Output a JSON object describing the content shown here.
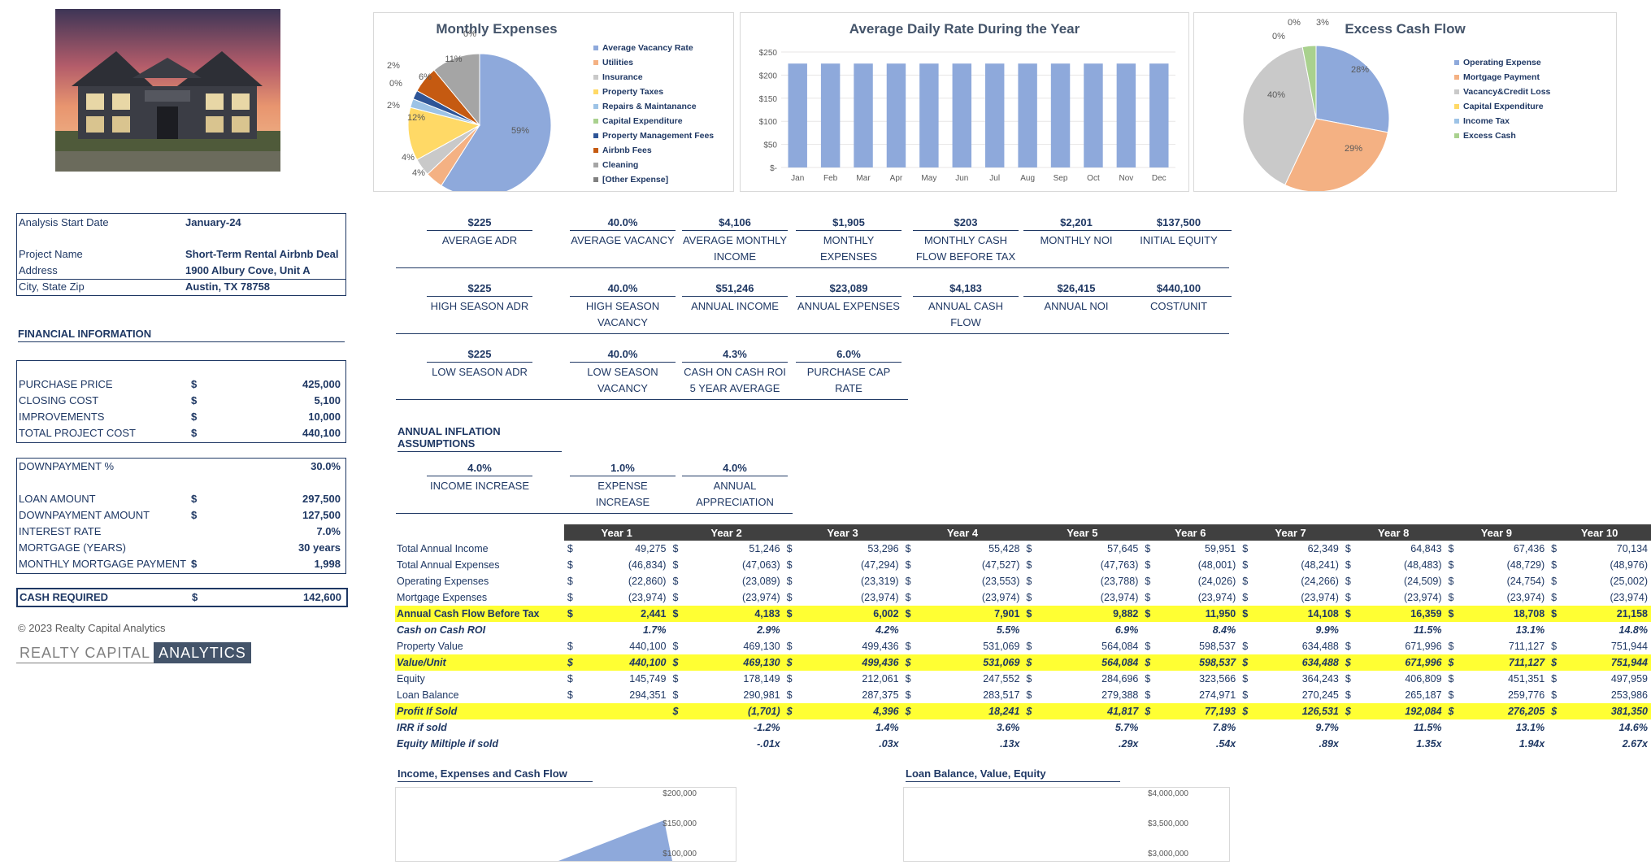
{
  "photo_alt": "house photo",
  "charts": {
    "monthly_expenses": {
      "title": "Monthly Expenses",
      "legend": [
        "Average Vacancy Rate",
        "Utilities",
        "Insurance",
        "Property Taxes",
        "Repairs & Maintanance",
        "Capital Expenditure",
        "Property Management Fees",
        "Airbnb Fees",
        "Cleaning",
        "[Other Expense]"
      ],
      "slice_labels": [
        "59%",
        "4%",
        "4%",
        "12%",
        "2%",
        "0%",
        "2%",
        "6%",
        "11%",
        "0%"
      ],
      "colors": [
        "#8ea9db",
        "#f4b183",
        "#c9c9c9",
        "#ffd966",
        "#9dc3e6",
        "#a9d18e",
        "#2e5597",
        "#c55a11",
        "#a5a5a5",
        "#808080"
      ]
    },
    "adr": {
      "title": "Average Daily Rate During the Year",
      "months": [
        "Jan",
        "Feb",
        "Mar",
        "Apr",
        "May",
        "Jun",
        "Jul",
        "Aug",
        "Sep",
        "Oct",
        "Nov",
        "Dec"
      ],
      "values": [
        225,
        225,
        225,
        225,
        225,
        225,
        225,
        225,
        225,
        225,
        225,
        225
      ],
      "y_ticks": [
        "$250",
        "$200",
        "$150",
        "$100",
        "$50",
        "$-"
      ],
      "ylim": [
        0,
        250
      ],
      "bar_color": "#8ea9db"
    },
    "excess_cash": {
      "title": "Excess Cash Flow",
      "legend": [
        "Operating Expense",
        "Mortgage Payment",
        "Vacancy&Credit Loss",
        "Capital Expenditure",
        "Income Tax",
        "Excess Cash"
      ],
      "slice_labels": [
        "28%",
        "29%",
        "40%",
        "0%",
        "0%",
        "3%"
      ],
      "colors": [
        "#8ea9db",
        "#f4b183",
        "#c9c9c9",
        "#ffd966",
        "#9dc3e6",
        "#a9d18e"
      ]
    },
    "income_chart": {
      "title": "Income, Expenses and Cash Flow",
      "y_ticks": [
        "$200,000",
        "$150,000",
        "$100,000"
      ]
    },
    "loan_chart": {
      "title": "Loan Balance, Value, Equity",
      "y_ticks": [
        "$4,000,000",
        "$3,500,000",
        "$3,000,000"
      ]
    }
  },
  "project": {
    "analysis_start_label": "Analysis Start Date",
    "analysis_start": "January-24",
    "project_name_label": "Project Name",
    "project_name": "Short-Term Rental Airbnb Deal",
    "address_label": "Address",
    "address": "1900 Albury Cove, Unit A",
    "city_label": "City, State Zip",
    "city": "Austin, TX 78758"
  },
  "financial": {
    "title": "FINANCIAL INFORMATION",
    "purchase_price_label": "PURCHASE PRICE",
    "purchase_price": "425,000",
    "closing_cost_label": "CLOSING COST",
    "closing_cost": "5,100",
    "improvements_label": "IMPROVEMENTS",
    "improvements": "10,000",
    "total_cost_label": "TOTAL PROJECT COST",
    "total_cost": "440,100",
    "downpayment_pct_label": "DOWNPAYMENT %",
    "downpayment_pct": "30.0%",
    "loan_amount_label": "LOAN AMOUNT",
    "loan_amount": "297,500",
    "downpayment_amount_label": "DOWNPAYMENT AMOUNT",
    "downpayment_amount": "127,500",
    "interest_rate_label": "INTEREST RATE",
    "interest_rate": "7.0%",
    "mortgage_years_label": "MORTGAGE (YEARS)",
    "mortgage_years": "30 years",
    "monthly_payment_label": "MONTHLY MORTGAGE PAYMENT",
    "monthly_payment": "1,998",
    "cash_required_label": "CASH REQUIRED",
    "cash_required": "142,600",
    "currency": "$"
  },
  "kpis_row1": [
    {
      "value": "$225",
      "label": "AVERAGE ADR"
    },
    {
      "value": "40.0%",
      "label": "AVERAGE VACANCY"
    },
    {
      "value": "$4,106",
      "label": "AVERAGE MONTHLY INCOME"
    },
    {
      "value": "$1,905",
      "label": "MONTHLY EXPENSES"
    },
    {
      "value": "$203",
      "label": "MONTHLY CASH FLOW BEFORE TAX"
    },
    {
      "value": "$2,201",
      "label": "MONTHLY NOI"
    },
    {
      "value": "$137,500",
      "label": "INITIAL EQUITY"
    }
  ],
  "kpis_row2": [
    {
      "value": "$225",
      "label": "HIGH SEASON ADR"
    },
    {
      "value": "40.0%",
      "label": "HIGH SEASON VACANCY"
    },
    {
      "value": "$51,246",
      "label": "ANNUAL INCOME"
    },
    {
      "value": "$23,089",
      "label": "ANNUAL EXPENSES"
    },
    {
      "value": "$4,183",
      "label": "ANNUAL CASH FLOW"
    },
    {
      "value": "$26,415",
      "label": "ANNUAL NOI"
    },
    {
      "value": "$440,100",
      "label": "COST/UNIT"
    }
  ],
  "kpis_row3": [
    {
      "value": "$225",
      "label": "LOW SEASON ADR"
    },
    {
      "value": "40.0%",
      "label": "LOW SEASON VACANCY"
    },
    {
      "value": "4.3%",
      "label": "CASH ON CASH ROI 5 YEAR AVERAGE"
    },
    {
      "value": "6.0%",
      "label": "PURCHASE CAP RATE"
    }
  ],
  "inflation": {
    "title": "ANNUAL INFLATION ASSUMPTIONS",
    "items": [
      {
        "value": "4.0%",
        "label": "INCOME INCREASE"
      },
      {
        "value": "1.0%",
        "label": "EXPENSE INCREASE"
      },
      {
        "value": "4.0%",
        "label": "ANNUAL APPRECIATION"
      }
    ]
  },
  "table": {
    "years": [
      "Year 1",
      "Year 2",
      "Year 3",
      "Year 4",
      "Year 5",
      "Year 6",
      "Year 7",
      "Year 8",
      "Year 9",
      "Year 10"
    ],
    "rows": [
      {
        "label": "Total Annual Income",
        "style": "",
        "cur": [
          "$",
          "$",
          "$",
          "$",
          "$",
          "$",
          "$",
          "$",
          "$",
          "$"
        ],
        "values": [
          "49,275",
          "51,246",
          "53,296",
          "55,428",
          "57,645",
          "59,951",
          "62,349",
          "64,843",
          "67,436",
          "70,134"
        ]
      },
      {
        "label": "Total Annual Expenses",
        "style": "",
        "cur": [
          "$",
          "$",
          "$",
          "$",
          "$",
          "$",
          "$",
          "$",
          "$",
          "$"
        ],
        "values": [
          "(46,834)",
          "(47,063)",
          "(47,294)",
          "(47,527)",
          "(47,763)",
          "(48,001)",
          "(48,241)",
          "(48,483)",
          "(48,729)",
          "(48,976)"
        ]
      },
      {
        "label": "Operating Expenses",
        "style": "",
        "cur": [
          "$",
          "$",
          "$",
          "$",
          "$",
          "$",
          "$",
          "$",
          "$",
          "$"
        ],
        "values": [
          "(22,860)",
          "(23,089)",
          "(23,319)",
          "(23,553)",
          "(23,788)",
          "(24,026)",
          "(24,266)",
          "(24,509)",
          "(24,754)",
          "(25,002)"
        ]
      },
      {
        "label": "Mortgage Expenses",
        "style": "",
        "cur": [
          "$",
          "$",
          "$",
          "$",
          "$",
          "$",
          "$",
          "$",
          "$",
          "$"
        ],
        "values": [
          "(23,974)",
          "(23,974)",
          "(23,974)",
          "(23,974)",
          "(23,974)",
          "(23,974)",
          "(23,974)",
          "(23,974)",
          "(23,974)",
          "(23,974)"
        ]
      },
      {
        "label": "Annual Cash Flow Before Tax",
        "style": "hl",
        "cur": [
          "$",
          "$",
          "$",
          "$",
          "$",
          "$",
          "$",
          "$",
          "$",
          "$"
        ],
        "values": [
          "2,441",
          "4,183",
          "6,002",
          "7,901",
          "9,882",
          "11,950",
          "14,108",
          "16,359",
          "18,708",
          "21,158"
        ]
      },
      {
        "label": "Cash on Cash ROI",
        "style": "it",
        "cur": [
          "",
          "",
          "",
          "",
          "",
          "",
          "",
          "",
          "",
          ""
        ],
        "values": [
          "1.7%",
          "2.9%",
          "4.2%",
          "5.5%",
          "6.9%",
          "8.4%",
          "9.9%",
          "11.5%",
          "13.1%",
          "14.8%"
        ]
      },
      {
        "label": "Property Value",
        "style": "",
        "cur": [
          "$",
          "$",
          "$",
          "$",
          "$",
          "$",
          "$",
          "$",
          "$",
          "$"
        ],
        "values": [
          "440,100",
          "469,130",
          "499,436",
          "531,069",
          "564,084",
          "598,537",
          "634,488",
          "671,996",
          "711,127",
          "751,944"
        ]
      },
      {
        "label": "Value/Unit",
        "style": "hl it",
        "cur": [
          "$",
          "$",
          "$",
          "$",
          "$",
          "$",
          "$",
          "$",
          "$",
          "$"
        ],
        "values": [
          "440,100",
          "469,130",
          "499,436",
          "531,069",
          "564,084",
          "598,537",
          "634,488",
          "671,996",
          "711,127",
          "751,944"
        ]
      },
      {
        "label": "Equity",
        "style": "",
        "cur": [
          "$",
          "$",
          "$",
          "$",
          "$",
          "$",
          "$",
          "$",
          "$",
          "$"
        ],
        "values": [
          "145,749",
          "178,149",
          "212,061",
          "247,552",
          "284,696",
          "323,566",
          "364,243",
          "406,809",
          "451,351",
          "497,959"
        ]
      },
      {
        "label": "Loan Balance",
        "style": "",
        "cur": [
          "$",
          "$",
          "$",
          "$",
          "$",
          "$",
          "$",
          "$",
          "$",
          "$"
        ],
        "values": [
          "294,351",
          "290,981",
          "287,375",
          "283,517",
          "279,388",
          "274,971",
          "270,245",
          "265,187",
          "259,776",
          "253,986"
        ]
      },
      {
        "label": "Profit If Sold",
        "style": "hl it",
        "cur": [
          "",
          "$",
          "$",
          "$",
          "$",
          "$",
          "$",
          "$",
          "$",
          "$"
        ],
        "values": [
          "",
          "(1,701)",
          "4,396",
          "18,241",
          "41,817",
          "77,193",
          "126,531",
          "192,084",
          "276,205",
          "381,350"
        ]
      },
      {
        "label": "IRR if sold",
        "style": "it",
        "cur": [
          "",
          "",
          "",
          "",
          "",
          "",
          "",
          "",
          "",
          ""
        ],
        "values": [
          "",
          "-1.2%",
          "1.4%",
          "3.6%",
          "5.7%",
          "7.8%",
          "9.7%",
          "11.5%",
          "13.1%",
          "14.6%"
        ]
      },
      {
        "label": "Equity Miltiple if sold",
        "style": "it",
        "cur": [
          "",
          "",
          "",
          "",
          "",
          "",
          "",
          "",
          "",
          ""
        ],
        "values": [
          "",
          "-.01x",
          ".03x",
          ".13x",
          ".29x",
          ".54x",
          ".89x",
          "1.35x",
          "1.94x",
          "2.67x"
        ]
      }
    ]
  },
  "footer": {
    "copyright": "© 2023 Realty Capital Analytics",
    "brand1": "REALTY CAPITAL",
    "brand2": "ANALYTICS"
  }
}
